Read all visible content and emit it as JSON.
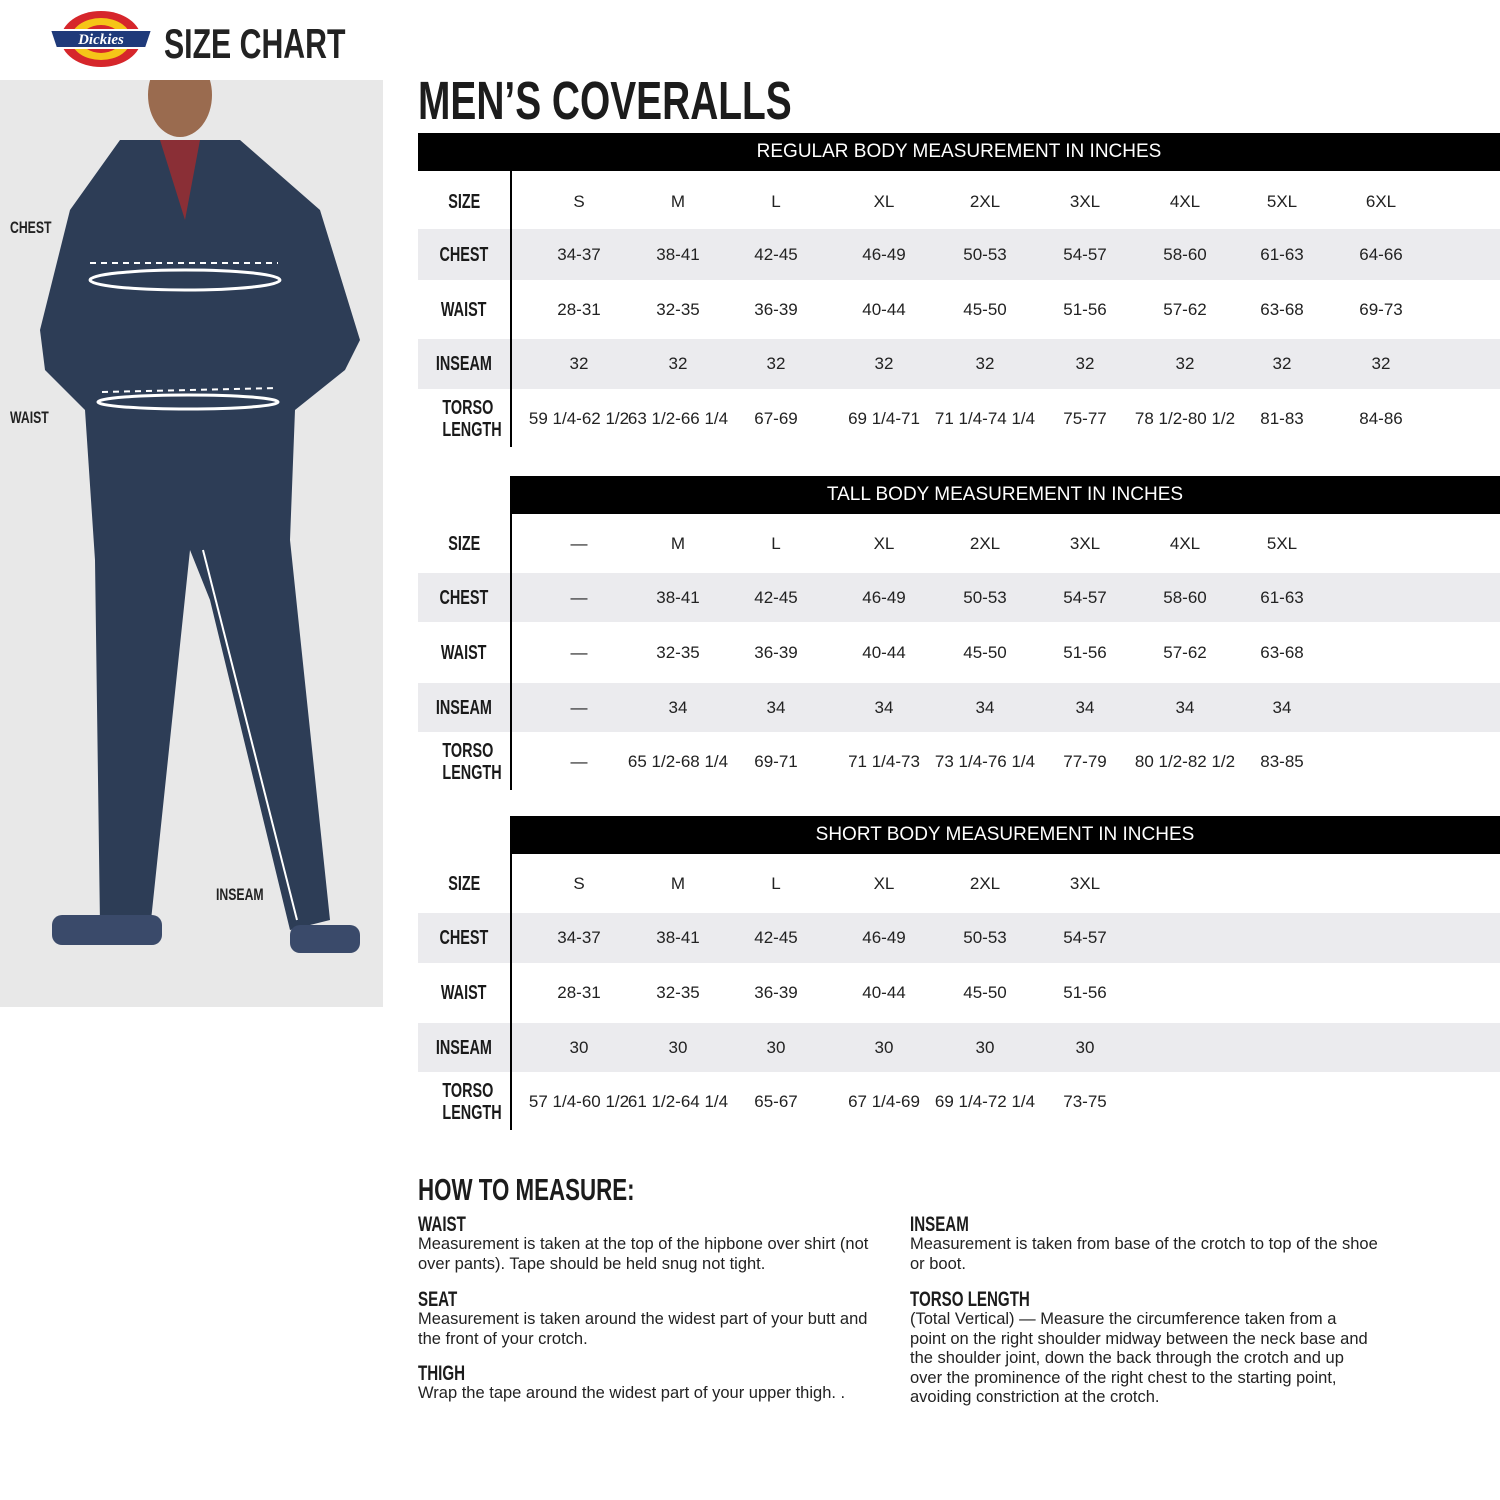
{
  "header": {
    "brand": "Dickies",
    "title": "SIZE CHART",
    "logo_colors": {
      "red": "#d6262b",
      "yellow": "#f5c518",
      "blue": "#1f3a7a"
    }
  },
  "photo_labels": {
    "chest": "CHEST",
    "waist": "WAIST",
    "inseam": "INSEAM"
  },
  "page_title": "MEN’S COVERALLS",
  "row_labels": {
    "size": "SIZE",
    "chest": "CHEST",
    "waist": "WAIST",
    "inseam": "INSEAM",
    "torso": "TORSO LENGTH"
  },
  "tables": [
    {
      "title": "REGULAR BODY MEASUREMENT IN INCHES",
      "size": [
        "S",
        "M",
        "L",
        "XL",
        "2XL",
        "3XL",
        "4XL",
        "5XL",
        "6XL"
      ],
      "chest": [
        "34-37",
        "38-41",
        "42-45",
        "46-49",
        "50-53",
        "54-57",
        "58-60",
        "61-63",
        "64-66"
      ],
      "waist": [
        "28-31",
        "32-35",
        "36-39",
        "40-44",
        "45-50",
        "51-56",
        "57-62",
        "63-68",
        "69-73"
      ],
      "inseam": [
        "32",
        "32",
        "32",
        "32",
        "32",
        "32",
        "32",
        "32",
        "32"
      ],
      "torso": [
        "59 1/4-62 1/2",
        "63 1/2-66 1/4",
        "67-69",
        "69 1/4-71",
        "71 1/4-74 1/4",
        "75-77",
        "78 1/2-80 1/2",
        "81-83",
        "84-86"
      ]
    },
    {
      "title": "TALL BODY MEASUREMENT IN INCHES",
      "size": [
        "—",
        "M",
        "L",
        "XL",
        "2XL",
        "3XL",
        "4XL",
        "5XL"
      ],
      "chest": [
        "—",
        "38-41",
        "42-45",
        "46-49",
        "50-53",
        "54-57",
        "58-60",
        "61-63"
      ],
      "waist": [
        "—",
        "32-35",
        "36-39",
        "40-44",
        "45-50",
        "51-56",
        "57-62",
        "63-68"
      ],
      "inseam": [
        "—",
        "34",
        "34",
        "34",
        "34",
        "34",
        "34",
        "34"
      ],
      "torso": [
        "—",
        "65 1/2-68 1/4",
        "69-71",
        "71 1/4-73",
        "73 1/4-76 1/4",
        "77-79",
        "80 1/2-82 1/2",
        "83-85"
      ]
    },
    {
      "title": "SHORT BODY MEASUREMENT IN INCHES",
      "size": [
        "S",
        "M",
        "L",
        "XL",
        "2XL",
        "3XL"
      ],
      "chest": [
        "34-37",
        "38-41",
        "42-45",
        "46-49",
        "50-53",
        "54-57"
      ],
      "waist": [
        "28-31",
        "32-35",
        "36-39",
        "40-44",
        "45-50",
        "51-56"
      ],
      "inseam": [
        "30",
        "30",
        "30",
        "30",
        "30",
        "30"
      ],
      "torso": [
        "57 1/4-60 1/2",
        "61 1/2-64 1/4",
        "65-67",
        "67 1/4-69",
        "69 1/4-72 1/4",
        "73-75"
      ]
    }
  ],
  "how_to_measure": {
    "title": "HOW TO MEASURE:",
    "sections": [
      {
        "title": "WAIST",
        "text": "Measurement is taken at the top of the hipbone over shirt (not over pants). Tape should be held snug not tight."
      },
      {
        "title": "SEAT",
        "text": "Measurement is taken around the widest part of your butt and the front of your crotch."
      },
      {
        "title": "THIGH",
        "text": "Wrap the tape around the widest part of your upper thigh. ."
      },
      {
        "title": "INSEAM",
        "text": "Measurement is taken from base of the crotch to top of the shoe or boot."
      },
      {
        "title": "TORSO LENGTH",
        "text": "(Total Vertical) — Measure the circumference taken from a point on the right shoulder midway between the neck base and the shoulder joint, down the back through the crotch and up over the prominence of the right chest to the starting point, avoiding constriction at the crotch."
      }
    ]
  }
}
